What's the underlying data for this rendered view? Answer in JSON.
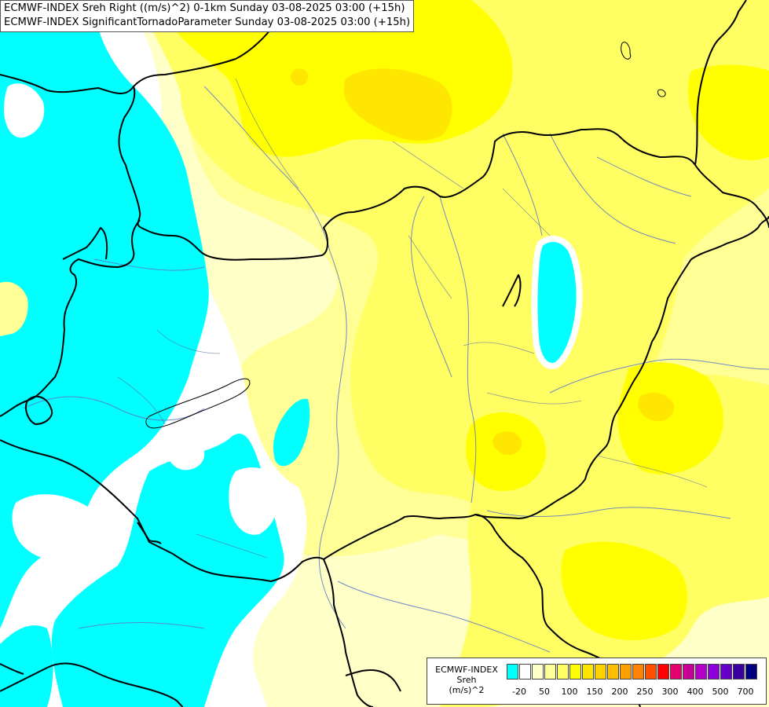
{
  "title": {
    "line1": "ECMWF-INDEX Sreh Right ((m/s)^2) 0-1km Sunday 03-08-2025 03:00 (+15h)",
    "line2": "ECMWF-INDEX SignificantTornadoParameter Sunday 03-08-2025 03:00 (+15h)"
  },
  "legend": {
    "source": "ECMWF-INDEX",
    "variable": "Sreh",
    "unit": "(m/s)^2",
    "colors": [
      "#00ffff",
      "#ffffff",
      "#ffffc8",
      "#ffff96",
      "#ffff64",
      "#ffff00",
      "#ffe600",
      "#ffd200",
      "#ffbe00",
      "#ffa000",
      "#ff8200",
      "#ff5000",
      "#ff0000",
      "#e6006e",
      "#c80096",
      "#b400c8",
      "#8c00dc",
      "#6400c8",
      "#3c00a0",
      "#000080"
    ],
    "ticks": [
      "-20",
      "50",
      "100",
      "150",
      "200",
      "250",
      "300",
      "400",
      "500",
      "700"
    ]
  },
  "map": {
    "background_color": "#ffffc8",
    "fields": [
      {
        "name": "cyan-west-region",
        "color": "#00ffff"
      },
      {
        "name": "white-margin",
        "color": "#ffffff"
      },
      {
        "name": "light-yellow-field",
        "color": "#ffff96"
      },
      {
        "name": "yellow-field",
        "color": "#ffff64"
      },
      {
        "name": "bright-yellow-north",
        "color": "#ffff00"
      },
      {
        "name": "gold-core",
        "color": "#ffe600"
      },
      {
        "name": "cyan-lake",
        "color": "#00ffff"
      }
    ],
    "border_color": "#000000",
    "river_color": "#5a78c8"
  }
}
